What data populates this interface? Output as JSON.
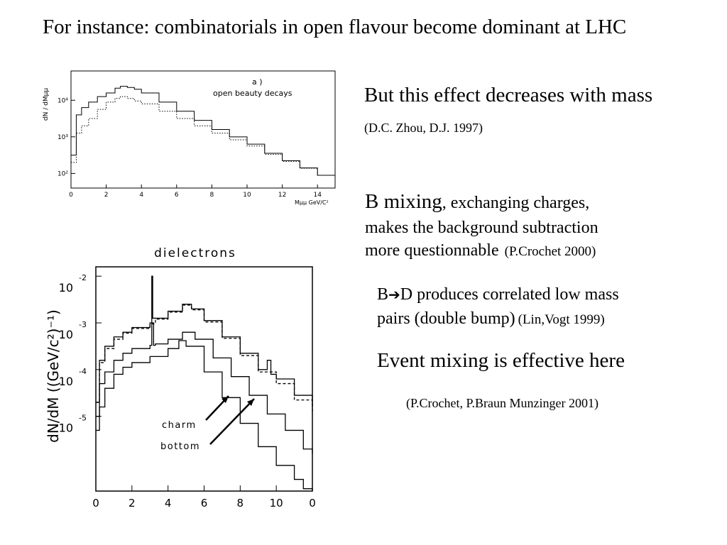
{
  "slide": {
    "title": "For instance: combinatorials in open flavour become dominant at LHC",
    "point1": "But this effect decreases with mass",
    "ref1": "(D.C. Zhou, D.J. 1997)",
    "point2_lead": "B mixing",
    "point2_tail": ", exchanging charges,",
    "point2_line2": "makes the background subtraction",
    "point2_line3": "more questionnable",
    "ref2": "(P.Crochet 2000)",
    "point3_b": "B",
    "point3_arrow": "➔",
    "point3_rest": "D produces correlated low mass",
    "point3_line2": "pairs (double bump)",
    "ref3": "(Lin,Vogt 1999)",
    "point4": "Event mixing is effective here",
    "ref4": "(P.Crochet, P.Braun Munzinger 2001)"
  },
  "chart_data": [
    {
      "type": "line",
      "title": "a )",
      "subtitle": "open beauty decays",
      "xlabel": "Mμμ GeV/C²",
      "ylabel": "dN / dMμμ",
      "xlim": [
        0,
        15
      ],
      "ylim_log10": [
        1.6,
        4.8
      ],
      "x_ticks": [
        "0",
        "2",
        "4",
        "6",
        "8",
        "10",
        "12",
        "14"
      ],
      "y_ticks": [
        "10²",
        "10³",
        "10⁴"
      ],
      "log_y": true,
      "series": [
        {
          "style": "solid",
          "x": [
            0,
            0.3,
            0.6,
            1,
            1.5,
            2,
            2.5,
            2.8,
            3.2,
            3.6,
            4,
            5,
            6,
            7,
            8,
            9,
            10,
            11,
            12,
            13,
            14,
            15
          ],
          "y_log10": [
            2.5,
            3.6,
            3.8,
            3.95,
            4.1,
            4.2,
            4.33,
            4.38,
            4.35,
            4.3,
            4.2,
            3.95,
            3.7,
            3.45,
            3.2,
            3.0,
            2.8,
            2.55,
            2.35,
            2.15,
            1.95,
            1.8
          ]
        },
        {
          "style": "dotted",
          "x": [
            0,
            0.3,
            0.6,
            1,
            1.5,
            2,
            2.5,
            2.8,
            3.2,
            3.6,
            4,
            5,
            6,
            7,
            8,
            9,
            10,
            11,
            12,
            13,
            14,
            15
          ],
          "y_log10": [
            2.3,
            3.1,
            3.3,
            3.5,
            3.75,
            3.95,
            4.05,
            4.1,
            4.05,
            3.98,
            3.9,
            3.7,
            3.5,
            3.3,
            3.1,
            2.92,
            2.75,
            2.52,
            2.33,
            2.14,
            1.95,
            1.8
          ]
        }
      ]
    },
    {
      "type": "line",
      "title": "dielectrons",
      "ylabel": "dN/dM  ((GeV/c²)⁻¹)",
      "xlim": [
        0,
        12
      ],
      "ylim_exp": [
        -6.6,
        -1.8
      ],
      "x_ticks": [
        "0",
        "2",
        "4",
        "6",
        "8",
        "10",
        "0"
      ],
      "y_ticks_base": "10",
      "y_ticks_exp": [
        "-2",
        "-3",
        "-4",
        "-5"
      ],
      "log_y": true,
      "annotations": [
        "charm",
        "bottom"
      ],
      "series": [
        {
          "style": "solid",
          "x": [
            0,
            0.2,
            0.5,
            1,
            1.5,
            2,
            3,
            3.1,
            3.15,
            3.3,
            4,
            4.8,
            5.3,
            6,
            7,
            8,
            9,
            9.5,
            9.7,
            10,
            11,
            12
          ],
          "y_exp": [
            -4.7,
            -3.8,
            -3.5,
            -3.3,
            -3.2,
            -3.1,
            -3.0,
            -2.0,
            -2.9,
            -2.9,
            -2.75,
            -2.6,
            -2.7,
            -2.95,
            -3.3,
            -3.65,
            -4.0,
            -3.8,
            -4.1,
            -4.2,
            -4.55,
            -4.8
          ]
        },
        {
          "style": "dashed",
          "x": [
            0,
            0.2,
            0.5,
            1,
            1.5,
            2,
            3,
            3.3,
            4,
            4.8,
            5.3,
            6,
            7,
            8,
            9,
            10,
            11,
            12
          ],
          "y_exp": [
            -4.7,
            -3.85,
            -3.55,
            -3.35,
            -3.22,
            -3.12,
            -3.02,
            -2.92,
            -2.77,
            -2.62,
            -2.72,
            -2.98,
            -3.33,
            -3.7,
            -4.05,
            -4.3,
            -4.65,
            -4.95
          ]
        },
        {
          "style": "solid",
          "x": [
            0,
            0.2,
            0.5,
            1,
            1.5,
            2,
            3,
            3.1,
            3.2,
            3.3,
            4,
            4.8,
            5.5,
            6.5,
            7.5,
            8.5,
            9.5,
            10.5,
            11.5,
            12
          ],
          "y_exp": [
            -5.0,
            -4.3,
            -4.05,
            -3.8,
            -3.65,
            -3.55,
            -3.48,
            -3.0,
            -3.48,
            -3.45,
            -3.35,
            -3.2,
            -3.35,
            -3.75,
            -4.15,
            -4.55,
            -4.95,
            -5.3,
            -5.7,
            -5.8
          ]
        },
        {
          "style": "solid",
          "x": [
            0,
            0.2,
            0.5,
            1,
            1.5,
            2,
            3,
            4,
            4.6,
            5,
            6,
            7,
            8,
            9,
            10,
            11,
            11.5,
            12
          ],
          "y_exp": [
            -5.3,
            -4.8,
            -4.4,
            -4.1,
            -3.95,
            -3.85,
            -3.72,
            -3.55,
            -3.38,
            -3.5,
            -4.05,
            -4.6,
            -5.15,
            -5.65,
            -6.05,
            -6.35,
            -6.55,
            -6.6
          ]
        }
      ]
    }
  ]
}
